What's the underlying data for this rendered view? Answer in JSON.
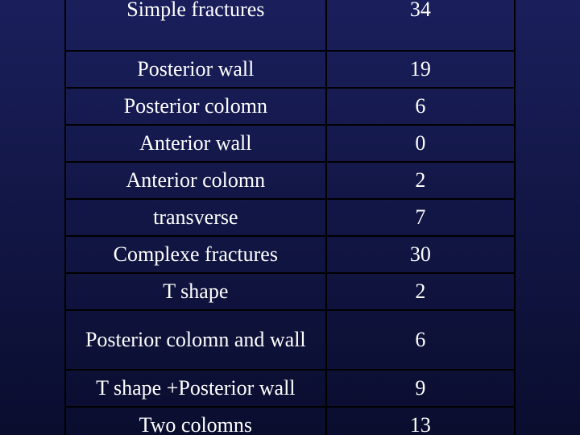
{
  "table": {
    "type": "table",
    "background_gradient": [
      "#1a1f5c",
      "#0a0d2e"
    ],
    "border_color": "#000000",
    "text_color": "#ffffff",
    "font_family": "Times New Roman",
    "font_size": 26,
    "columns": [
      {
        "key": "label",
        "width_pct": 58,
        "align": "center"
      },
      {
        "key": "value",
        "width_pct": 42,
        "align": "center"
      }
    ],
    "header": {
      "label": "Simple fractures",
      "value": "34"
    },
    "rows": [
      {
        "label": "Posterior wall",
        "value": "19"
      },
      {
        "label": "Posterior colomn",
        "value": "6"
      },
      {
        "label": "Anterior wall",
        "value": "0"
      },
      {
        "label": "Anterior colomn",
        "value": "2"
      },
      {
        "label": "transverse",
        "value": "7"
      },
      {
        "label": "Complexe fractures",
        "value": "30"
      },
      {
        "label": "T shape",
        "value": "2"
      },
      {
        "label": "Posterior colomn and wall",
        "value": "6"
      },
      {
        "label": "T shape +Posterior wall",
        "value": "9"
      },
      {
        "label": "Two colomns",
        "value": "13"
      }
    ]
  }
}
